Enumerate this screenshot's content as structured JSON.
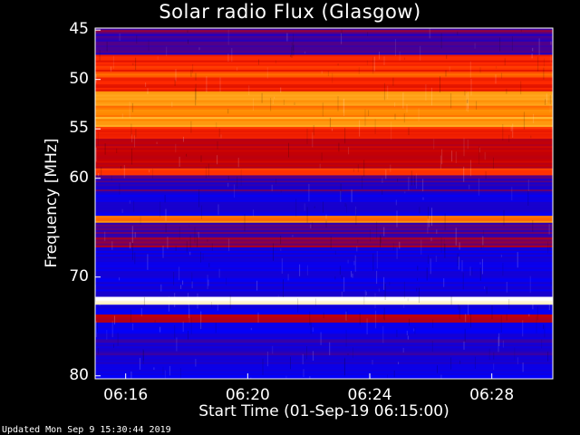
{
  "chart_data": {
    "type": "heatmap",
    "title": "Solar radio Flux (Glasgow)",
    "xlabel": "Start Time (01-Sep-19 06:15:00)",
    "ylabel": "Frequency [MHz]",
    "x_ticks": [
      "06:16",
      "06:20",
      "06:24",
      "06:28"
    ],
    "x_tick_minutes": [
      1,
      5,
      9,
      13
    ],
    "x_range_minutes": [
      0,
      15
    ],
    "y_ticks": [
      45,
      50,
      55,
      60,
      70,
      80
    ],
    "y_range_mhz": [
      44.8,
      80.3
    ],
    "colormap": [
      "#0000ff",
      "#1a00c8",
      "#8c0046",
      "#c80000",
      "#ff2a00",
      "#ff8a00",
      "#ffd24a",
      "#ffffff"
    ],
    "bands": [
      {
        "f0": 44.8,
        "f1": 45.4,
        "level": 0.25
      },
      {
        "f0": 45.4,
        "f1": 47.5,
        "level": 0.18
      },
      {
        "f0": 47.5,
        "f1": 49.2,
        "level": 0.55
      },
      {
        "f0": 49.2,
        "f1": 49.8,
        "level": 0.62
      },
      {
        "f0": 49.8,
        "f1": 51.2,
        "level": 0.52
      },
      {
        "f0": 51.2,
        "f1": 51.9,
        "level": 0.78
      },
      {
        "f0": 51.9,
        "f1": 53.8,
        "level": 0.72
      },
      {
        "f0": 53.8,
        "f1": 54.8,
        "level": 0.76
      },
      {
        "f0": 54.8,
        "f1": 56.0,
        "level": 0.55
      },
      {
        "f0": 56.0,
        "f1": 59.0,
        "level": 0.4
      },
      {
        "f0": 59.0,
        "f1": 59.7,
        "level": 0.6
      },
      {
        "f0": 59.7,
        "f1": 61.5,
        "level": 0.18
      },
      {
        "f0": 61.5,
        "f1": 63.8,
        "level": 0.08
      },
      {
        "f0": 63.8,
        "f1": 64.5,
        "level": 0.72
      },
      {
        "f0": 64.5,
        "f1": 66.0,
        "level": 0.2
      },
      {
        "f0": 66.0,
        "f1": 67.0,
        "level": 0.3
      },
      {
        "f0": 67.0,
        "f1": 72.0,
        "level": 0.08
      },
      {
        "f0": 72.0,
        "f1": 72.8,
        "level": 0.98
      },
      {
        "f0": 72.8,
        "f1": 73.8,
        "level": 0.05
      },
      {
        "f0": 73.8,
        "f1": 74.6,
        "level": 0.38
      },
      {
        "f0": 74.6,
        "f1": 76.3,
        "level": 0.05
      },
      {
        "f0": 76.3,
        "f1": 78.8,
        "level": 0.13
      },
      {
        "f0": 78.8,
        "f1": 80.3,
        "level": 0.06
      }
    ]
  },
  "footer": "Updated Mon Sep  9 15:30:44 2019"
}
